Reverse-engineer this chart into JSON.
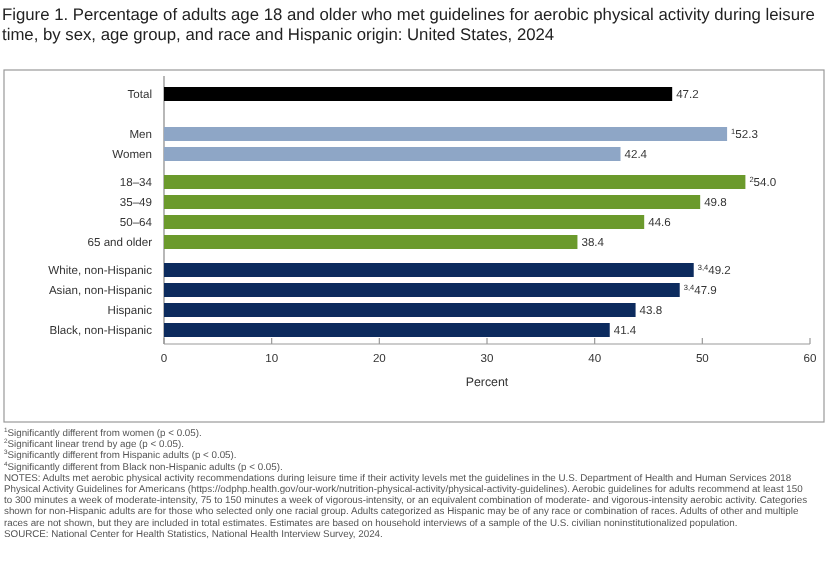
{
  "chart_data": {
    "type": "bar",
    "orientation": "horizontal",
    "title": "Figure 1. Percentage of adults age 18 and older who met guidelines for aerobic physical activity during leisure time, by sex, age group, and race and Hispanic origin: United States, 2024",
    "categories": [
      "Total",
      null,
      "Men",
      "Women",
      null,
      "18–34",
      "35–49",
      "50–64",
      "65 and older",
      null,
      "White, non-Hispanic",
      "Asian, non-Hispanic",
      "Hispanic",
      "Black, non-Hispanic"
    ],
    "values": [
      47.2,
      null,
      52.3,
      42.4,
      null,
      54.0,
      49.8,
      44.6,
      38.4,
      null,
      49.2,
      47.9,
      43.8,
      41.4
    ],
    "colors": [
      "#000000",
      null,
      "#8ea6c6",
      "#8ea6c6",
      null,
      "#6b9a2c",
      "#6b9a2c",
      "#6b9a2c",
      "#6b9a2c",
      null,
      "#0c2b5e",
      "#0c2b5e",
      "#0c2b5e",
      "#0c2b5e"
    ],
    "value_labels": [
      "47.2",
      null,
      "$^{1}$52.3",
      "42.4",
      null,
      "$^{2}$54.0",
      "49.8",
      "44.6",
      "38.4",
      null,
      "$^{3,4}$49.2",
      "$^{3,4}$47.9",
      "43.8",
      "41.4"
    ],
    "xlabel": "Percent",
    "xlim": [
      0,
      60
    ],
    "xticks": [
      0,
      10,
      20,
      30,
      40,
      50,
      60
    ],
    "grid": false,
    "annotations": [
      "$^{1}$Significantly different from women (p < 0.05).",
      "$^{2}$Significant linear trend by age (p < 0.05).",
      "$^{3}$Significantly different from Hispanic adults (p < 0.05).",
      "$^{4}$Significantly different from Black non-Hispanic adults (p < 0.05).",
      "NOTES: Adults met aerobic physical activity recommendations during leisure time if their activity levels met the guidelines in the U.S. Department of Health and Human Services 2018 Physical Activity Guidelines for Americans (https://odphp.health.gov/our-work/nutrition-physical-activity/physical-activity-guidelines). Aerobic guidelines for adults recommend at least 150 to 300 minutes a week of moderate-intensity, 75 to 150 minutes a week of vigorous-intensity, or an equivalent combination of moderate- and vigorous-intensity aerobic activity. Categories shown for non-Hispanic adults are for those who selected only one racial group. Adults categorized as Hispanic may be of any race or combination of races. Adults of other and multiple races are not shown, but they are included in total estimates. Estimates are based on household interviews of a sample of the U.S. civilian noninstitutionalized population.",
      "SOURCE: National Center for Health Statistics, National Health Interview Survey, 2024."
    ]
  }
}
